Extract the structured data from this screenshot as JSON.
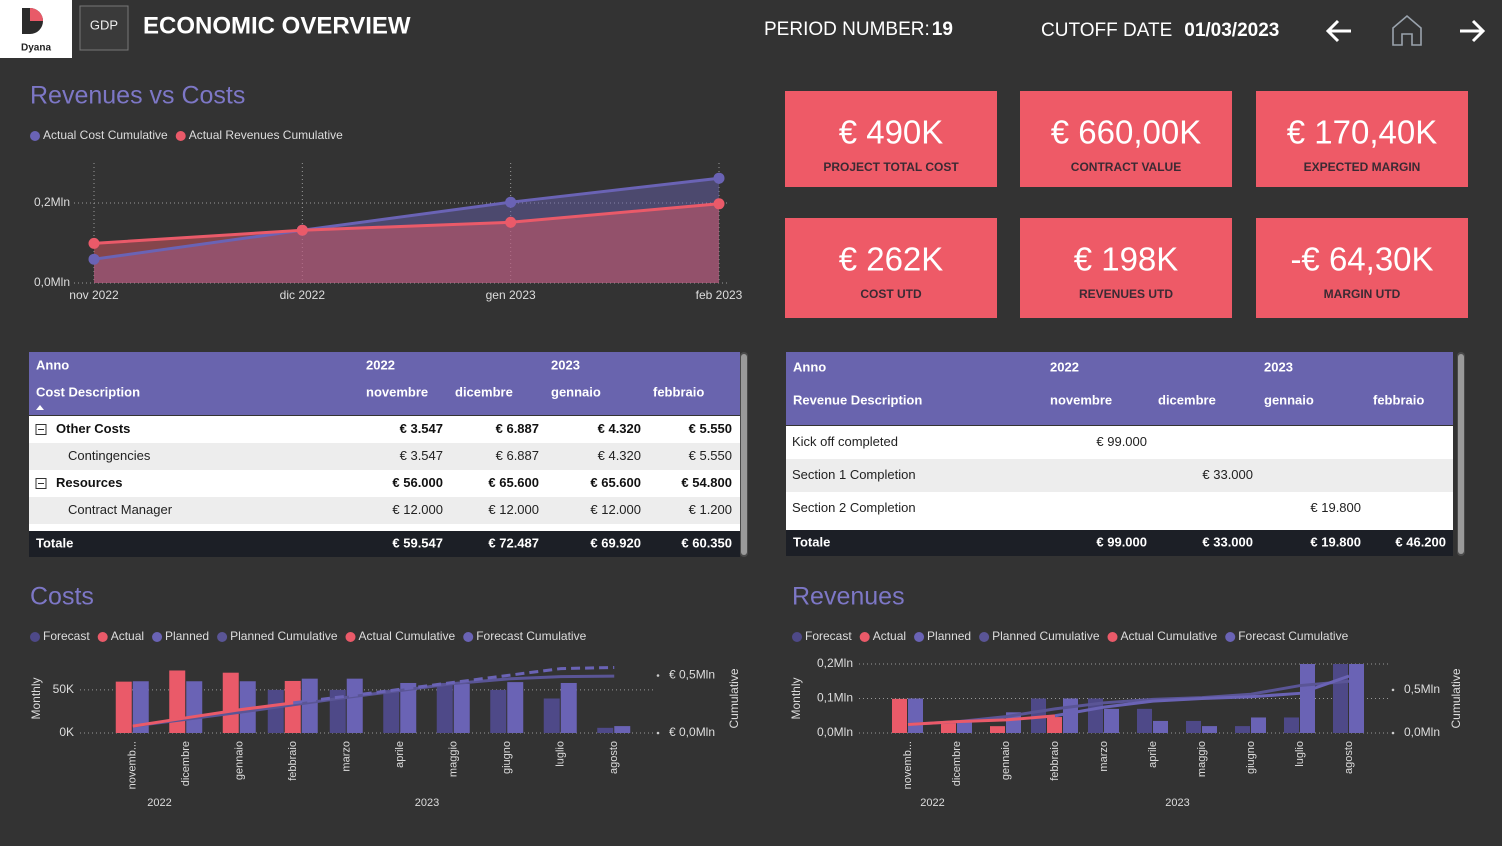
{
  "header": {
    "logo": "Dyana",
    "logo2": "GDP",
    "title": "ECONOMIC OVERVIEW",
    "period_label": "PERIOD NUMBER:",
    "period": "19",
    "cutoff_label": "CUTOFF DATE",
    "cutoff": "01/03/2023"
  },
  "kpis": [
    {
      "value": "€ 490K",
      "label": "PROJECT TOTAL COST"
    },
    {
      "value": "€ 660,00K",
      "label": "CONTRACT VALUE"
    },
    {
      "value": "€ 170,40K",
      "label": "EXPECTED MARGIN"
    },
    {
      "value": "€ 262K",
      "label": "COST UTD"
    },
    {
      "value": "€ 198K",
      "label": "REVENUES UTD"
    },
    {
      "value": "-€ 64,30K",
      "label": "MARGIN UTD"
    }
  ],
  "cost_table": {
    "header": "Anno",
    "row_header": "Cost Description",
    "years": [
      "2022",
      "2023"
    ],
    "months": [
      "novembre",
      "dicembre",
      "gennaio",
      "febbraio"
    ],
    "rows": [
      {
        "label": "Other Costs",
        "group": true,
        "values": [
          "€ 3.547",
          "€ 6.887",
          "€ 4.320",
          "€ 5.550"
        ]
      },
      {
        "label": "Contingencies",
        "group": false,
        "values": [
          "€ 3.547",
          "€ 6.887",
          "€ 4.320",
          "€ 5.550"
        ]
      },
      {
        "label": "Resources",
        "group": true,
        "values": [
          "€ 56.000",
          "€ 65.600",
          "€ 65.600",
          "€ 54.800"
        ]
      },
      {
        "label": "Contract Manager",
        "group": false,
        "values": [
          "€ 12.000",
          "€ 12.000",
          "€ 12.000",
          "€ 1.200"
        ]
      }
    ],
    "total": {
      "label": "Totale",
      "values": [
        "€ 59.547",
        "€ 72.487",
        "€ 69.920",
        "€ 60.350"
      ]
    }
  },
  "revenue_table": {
    "header": "Anno",
    "row_header": "Revenue Description",
    "years": [
      "2022",
      "2023"
    ],
    "months": [
      "novembre",
      "dicembre",
      "gennaio",
      "febbraio"
    ],
    "rows": [
      {
        "label": "Kick off completed",
        "values": [
          "€ 99.000",
          null,
          null,
          null
        ]
      },
      {
        "label": "Section 1 Completion",
        "values": [
          null,
          "€ 33.000",
          null,
          null
        ]
      },
      {
        "label": "Section 2 Completion",
        "values": [
          null,
          null,
          "€ 19.800",
          null
        ]
      }
    ],
    "total": {
      "label": "Totale",
      "values": [
        "€ 99.000",
        "€ 33.000",
        "€ 19.800",
        "€ 46.200"
      ]
    }
  },
  "chart_data": [
    {
      "type": "line",
      "title": "Revenues vs Costs",
      "area": true,
      "grid": true,
      "categories": [
        "nov 2022",
        "dic 2022",
        "gen 2023",
        "feb 2023"
      ],
      "series": [
        {
          "name": "Actual Cost Cumulative",
          "color": "#6a63b5",
          "values": [
            0.0595,
            0.132,
            0.202,
            0.262
          ]
        },
        {
          "name": "Actual Revenues Cumulative",
          "color": "#ea5a69",
          "values": [
            0.099,
            0.132,
            0.1518,
            0.198
          ]
        }
      ],
      "ylim": [
        0,
        0.3
      ],
      "yticks": [
        {
          "value": 0,
          "label": "0,0Mln"
        },
        {
          "value": 0.2,
          "label": "0,2Mln"
        }
      ]
    },
    {
      "type": "combo",
      "title": "Costs",
      "grid": true,
      "ylabel": "Monthly",
      "y2label": "Cumulative",
      "categories": [
        "novemb...",
        "dicembre",
        "gennaio",
        "febbraio",
        "marzo",
        "aprile",
        "maggio",
        "giugno",
        "luglio",
        "agosto"
      ],
      "x_groups": [
        "2022",
        "2023"
      ],
      "series": [
        {
          "name": "Forecast",
          "kind": "bar",
          "color": "#4e4988",
          "values": [
            null,
            null,
            null,
            50,
            50,
            50,
            58,
            50,
            40,
            6
          ]
        },
        {
          "name": "Actual",
          "kind": "bar",
          "color": "#ea5a69",
          "values": [
            59.547,
            72.487,
            69.92,
            60.35,
            null,
            null,
            null,
            null,
            null,
            null
          ]
        },
        {
          "name": "Planned",
          "kind": "bar",
          "color": "#6a63b5",
          "values": [
            60,
            60,
            60,
            63,
            63,
            58,
            57,
            59,
            58,
            8
          ]
        },
        {
          "name": "Planned Cumulative",
          "kind": "line",
          "axis": "y2",
          "color": "#5a5596",
          "values": [
            0.06,
            0.12,
            0.18,
            0.245,
            0.31,
            0.37,
            0.43,
            0.47,
            0.49,
            0.495
          ]
        },
        {
          "name": "Actual Cumulative",
          "kind": "line",
          "axis": "y2",
          "color": "#ea5a69",
          "values": [
            0.0595,
            0.132,
            0.202,
            0.262,
            null,
            null,
            null,
            null,
            null,
            null
          ]
        },
        {
          "name": "Forecast Cumulative",
          "kind": "line",
          "axis": "y2",
          "dash": true,
          "color": "#6a63b5",
          "values": [
            null,
            null,
            null,
            0.262,
            0.32,
            0.38,
            0.44,
            0.5,
            0.56,
            0.57
          ]
        }
      ],
      "ylim": [
        0,
        80
      ],
      "yticks": [
        {
          "value": 0,
          "label": "0K"
        },
        {
          "value": 50,
          "label": "50K"
        }
      ],
      "y2lim": [
        0,
        0.6
      ],
      "y2ticks": [
        {
          "value": 0,
          "label": "€ 0,0Mln"
        },
        {
          "value": 0.5,
          "label": "€ 0,5Mln"
        }
      ]
    },
    {
      "type": "combo",
      "title": "Revenues",
      "grid": true,
      "ylabel": "Monthly",
      "y2label": "Cumulative",
      "categories": [
        "novemb...",
        "dicembre",
        "gennaio",
        "febbraio",
        "marzo",
        "aprile",
        "maggio",
        "giugno",
        "luglio",
        "agosto"
      ],
      "x_groups": [
        "2022",
        "2023"
      ],
      "series": [
        {
          "name": "Forecast",
          "kind": "bar",
          "color": "#4e4988",
          "values": [
            null,
            null,
            null,
            0.1,
            0.1,
            0.07,
            0.035,
            0.02,
            0.045,
            0.2
          ]
        },
        {
          "name": "Actual",
          "kind": "bar",
          "color": "#ea5a69",
          "values": [
            0.099,
            0.033,
            0.0198,
            0.0462,
            null,
            null,
            null,
            null,
            null,
            null
          ]
        },
        {
          "name": "Planned",
          "kind": "bar",
          "color": "#6a63b5",
          "values": [
            0.1,
            0.033,
            0.06,
            0.1,
            0.07,
            0.035,
            0.02,
            0.045,
            0.2,
            0.2
          ]
        },
        {
          "name": "Planned Cumulative",
          "kind": "line",
          "axis": "y2",
          "color": "#5a5596",
          "values": [
            0.1,
            0.13,
            0.19,
            0.28,
            0.35,
            0.39,
            0.41,
            0.45,
            0.55,
            0.6
          ]
        },
        {
          "name": "Actual Cumulative",
          "kind": "line",
          "axis": "y2",
          "color": "#ea5a69",
          "values": [
            0.099,
            0.132,
            0.1518,
            0.198,
            null,
            null,
            null,
            null,
            null,
            null
          ]
        },
        {
          "name": "Forecast Cumulative",
          "kind": "line",
          "axis": "y2",
          "color": "#6a63b5",
          "values": [
            null,
            null,
            null,
            0.2,
            0.3,
            0.37,
            0.4,
            0.42,
            0.46,
            0.66
          ]
        }
      ],
      "ylim": [
        0,
        0.2
      ],
      "yticks": [
        {
          "value": 0,
          "label": "0,0Mln"
        },
        {
          "value": 0.1,
          "label": "0,1Mln"
        },
        {
          "value": 0.2,
          "label": "0,2Mln"
        }
      ],
      "y2lim": [
        0,
        0.8
      ],
      "y2ticks": [
        {
          "value": 0,
          "label": "0,0Mln"
        },
        {
          "value": 0.5,
          "label": "0,5Mln"
        }
      ]
    }
  ]
}
